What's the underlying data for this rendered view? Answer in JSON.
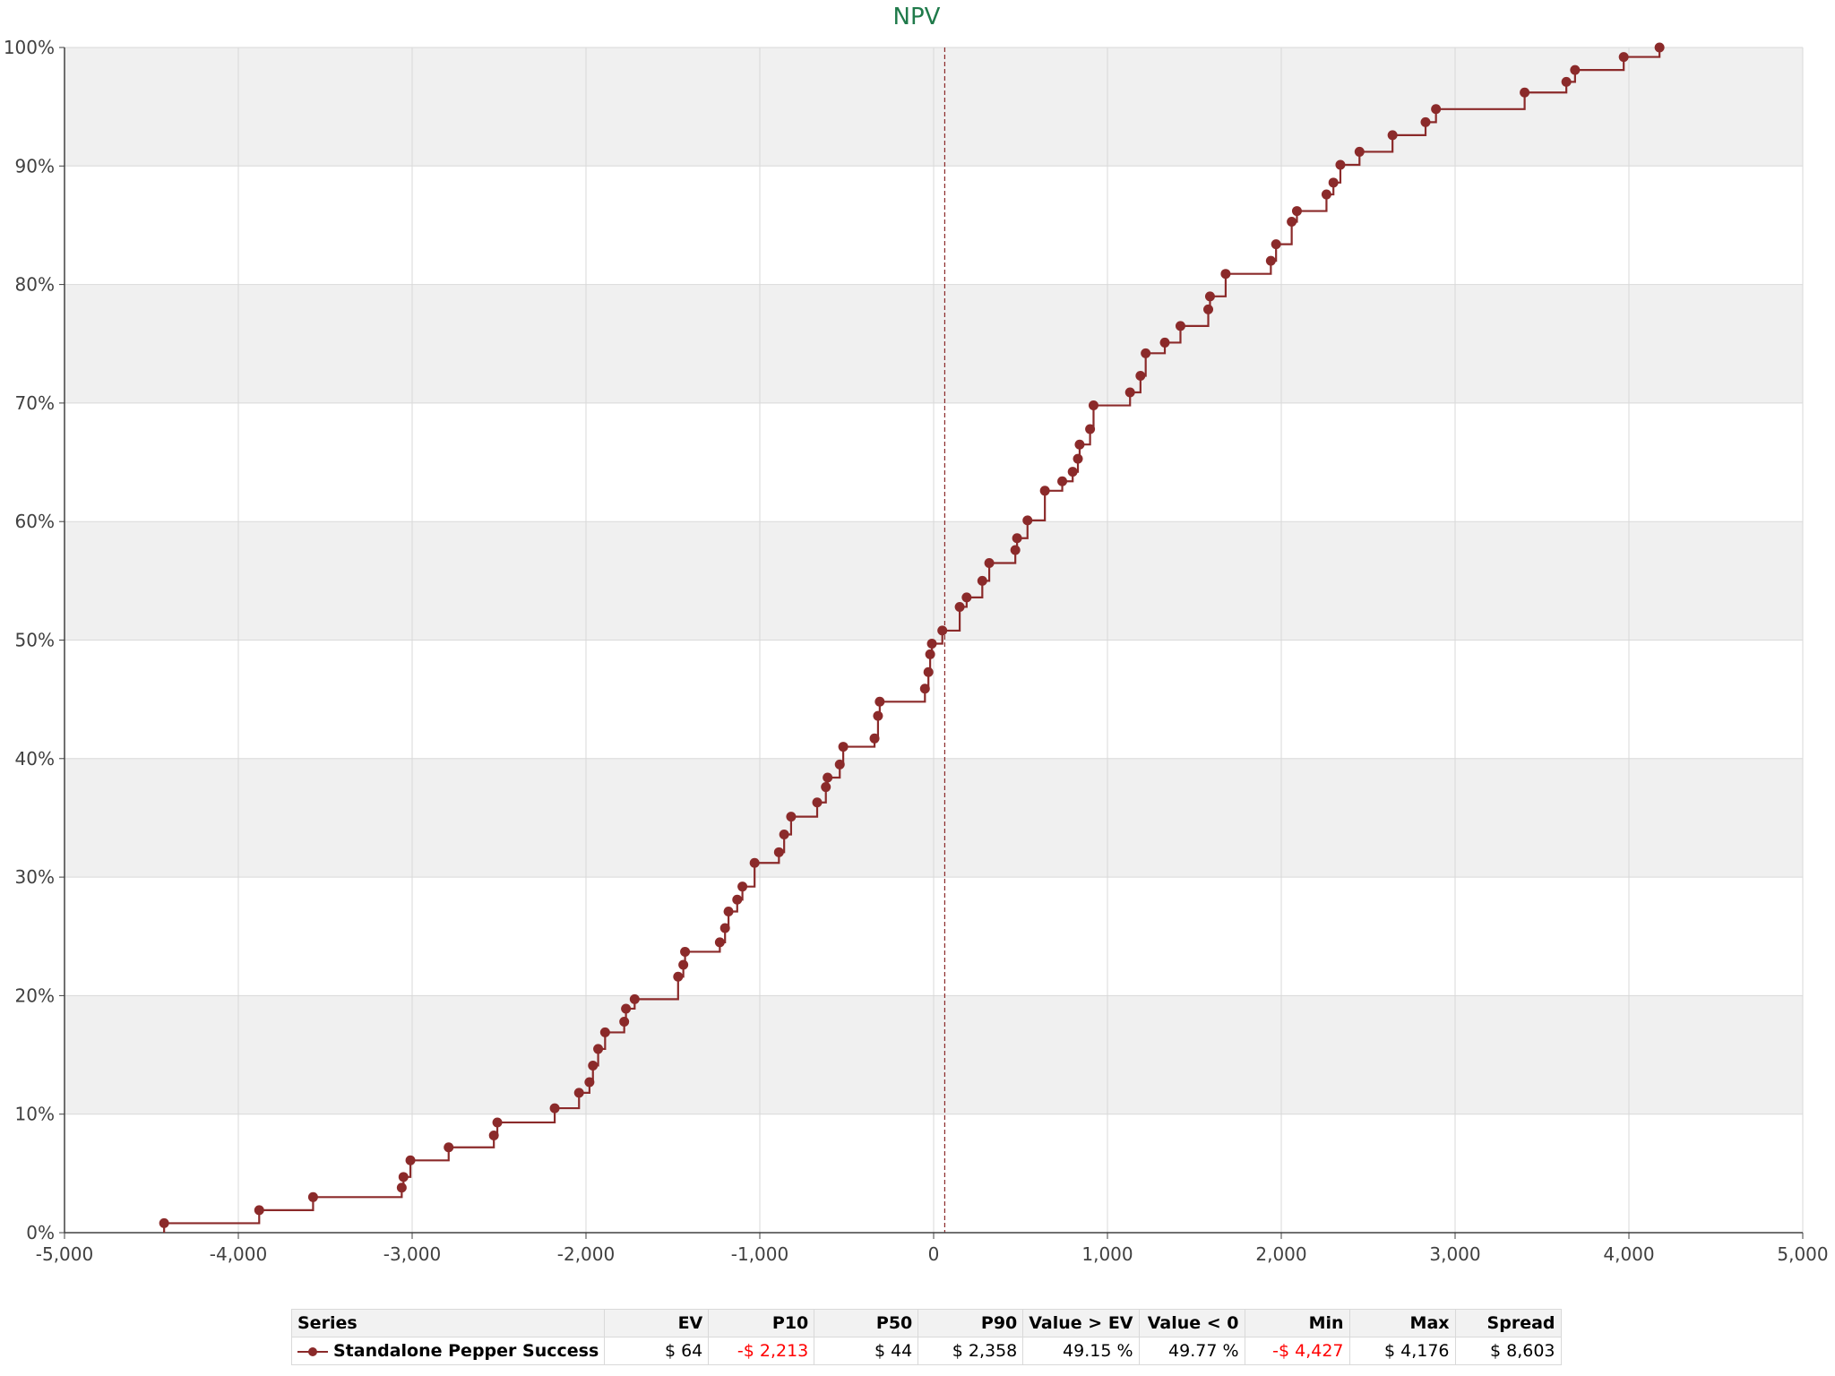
{
  "colors": {
    "series": "#8b2a2a",
    "band": "#f0f0f0",
    "grid": "#d9d9d9",
    "axis": "#404040",
    "title": "#1f7a4a",
    "negative": "#ff0000"
  },
  "chart_data": {
    "type": "line",
    "step": true,
    "title": "NPV",
    "xlabel": "",
    "ylabel": "",
    "xlim": [
      -5000,
      5000
    ],
    "ylim": [
      0,
      100
    ],
    "grid": true,
    "x_ticks": [
      "-5,000",
      "-4,000",
      "-3,000",
      "-2,000",
      "-1,000",
      "0",
      "1,000",
      "2,000",
      "3,000",
      "4,000",
      "5,000"
    ],
    "y_ticks": [
      "0%",
      "10%",
      "20%",
      "30%",
      "40%",
      "50%",
      "60%",
      "70%",
      "80%",
      "90%",
      "100%"
    ],
    "ev_line_x": 64,
    "series": [
      {
        "name": "Standalone Pepper Success",
        "points": [
          [
            -4427,
            0.8
          ],
          [
            -3880,
            1.9
          ],
          [
            -3570,
            3.0
          ],
          [
            -3060,
            3.8
          ],
          [
            -3050,
            4.7
          ],
          [
            -3010,
            6.1
          ],
          [
            -2790,
            7.2
          ],
          [
            -2530,
            8.2
          ],
          [
            -2510,
            9.3
          ],
          [
            -2180,
            10.5
          ],
          [
            -2040,
            11.8
          ],
          [
            -1980,
            12.7
          ],
          [
            -1960,
            14.1
          ],
          [
            -1930,
            15.5
          ],
          [
            -1890,
            16.9
          ],
          [
            -1780,
            17.8
          ],
          [
            -1770,
            18.9
          ],
          [
            -1720,
            19.7
          ],
          [
            -1470,
            21.6
          ],
          [
            -1440,
            22.6
          ],
          [
            -1430,
            23.7
          ],
          [
            -1230,
            24.5
          ],
          [
            -1200,
            25.7
          ],
          [
            -1180,
            27.1
          ],
          [
            -1130,
            28.1
          ],
          [
            -1100,
            29.2
          ],
          [
            -1030,
            31.2
          ],
          [
            -890,
            32.1
          ],
          [
            -860,
            33.6
          ],
          [
            -820,
            35.1
          ],
          [
            -670,
            36.3
          ],
          [
            -620,
            37.6
          ],
          [
            -610,
            38.4
          ],
          [
            -540,
            39.5
          ],
          [
            -520,
            41.0
          ],
          [
            -340,
            41.7
          ],
          [
            -320,
            43.6
          ],
          [
            -310,
            44.8
          ],
          [
            -50,
            45.9
          ],
          [
            -30,
            47.3
          ],
          [
            -20,
            48.8
          ],
          [
            -10,
            49.7
          ],
          [
            50,
            50.8
          ],
          [
            150,
            52.8
          ],
          [
            190,
            53.6
          ],
          [
            280,
            55.0
          ],
          [
            320,
            56.5
          ],
          [
            470,
            57.6
          ],
          [
            480,
            58.6
          ],
          [
            540,
            60.1
          ],
          [
            640,
            62.6
          ],
          [
            740,
            63.4
          ],
          [
            800,
            64.2
          ],
          [
            830,
            65.3
          ],
          [
            840,
            66.5
          ],
          [
            900,
            67.8
          ],
          [
            920,
            69.8
          ],
          [
            1130,
            70.9
          ],
          [
            1190,
            72.3
          ],
          [
            1220,
            74.2
          ],
          [
            1330,
            75.1
          ],
          [
            1420,
            76.5
          ],
          [
            1580,
            77.9
          ],
          [
            1590,
            79.0
          ],
          [
            1680,
            80.9
          ],
          [
            1940,
            82.0
          ],
          [
            1970,
            83.4
          ],
          [
            2060,
            85.3
          ],
          [
            2090,
            86.2
          ],
          [
            2260,
            87.6
          ],
          [
            2300,
            88.6
          ],
          [
            2340,
            90.1
          ],
          [
            2450,
            91.2
          ],
          [
            2640,
            92.6
          ],
          [
            2830,
            93.7
          ],
          [
            2890,
            94.8
          ],
          [
            3400,
            96.2
          ],
          [
            3640,
            97.1
          ],
          [
            3690,
            98.1
          ],
          [
            3970,
            99.2
          ],
          [
            4176,
            100.0
          ]
        ]
      }
    ]
  },
  "table": {
    "headers": [
      "Series",
      "EV",
      "P10",
      "P50",
      "P90",
      "Value > EV",
      "Value < 0",
      "Min",
      "Max",
      "Spread"
    ],
    "row": {
      "series": "Standalone Pepper Success",
      "ev": "$ 64",
      "p10": "-$ 2,213",
      "p50": "$ 44",
      "p90": "$ 2,358",
      "value_gt_ev": "49.15 %",
      "value_lt_0": "49.77 %",
      "min": "-$ 4,427",
      "max": "$ 4,176",
      "spread": "$ 8,603"
    }
  }
}
